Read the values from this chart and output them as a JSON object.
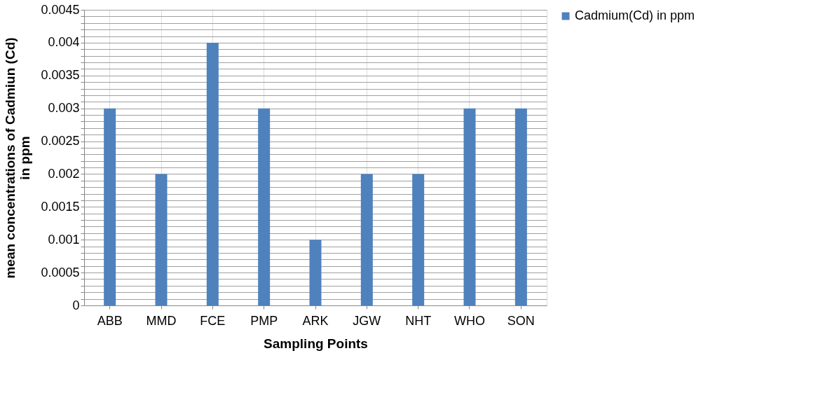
{
  "chart_data": {
    "type": "bar",
    "xlabel": "Sampling Points",
    "ylabel": "mean concentrations of Cadmiun (Cd)\nin ppm",
    "categories": [
      "ABB",
      "MMD",
      "FCE",
      "PMP",
      "ARK",
      "JGW",
      "NHT",
      "WHO",
      "SON"
    ],
    "series": [
      {
        "name": "Cadmium(Cd) in ppm",
        "color": "#4f81bd",
        "values": [
          0.003,
          0.002,
          0.004,
          0.003,
          0.001,
          0.002,
          0.002,
          0.003,
          0.003
        ]
      }
    ],
    "ylim": [
      0,
      0.0045
    ],
    "yticks": [
      0,
      {
        "value": 0.0001,
        "label": null
      },
      {
        "value": 0.0002,
        "label": null
      },
      {
        "value": 0.0003,
        "label": null
      },
      {
        "value": 0.0004,
        "label": null
      },
      0.0005,
      {
        "value": 0.0006,
        "label": null
      },
      {
        "value": 0.0007,
        "label": null
      },
      {
        "value": 0.0008,
        "label": null
      },
      {
        "value": 0.0009,
        "label": null
      },
      0.001,
      {
        "value": 0.0011,
        "label": null
      },
      {
        "value": 0.0012,
        "label": null
      },
      {
        "value": 0.0013,
        "label": null
      },
      {
        "value": 0.0014,
        "label": null
      },
      0.0015,
      {
        "value": 0.0016,
        "label": null
      },
      {
        "value": 0.0017,
        "label": null
      },
      {
        "value": 0.0018,
        "label": null
      },
      {
        "value": 0.0019,
        "label": null
      },
      0.002,
      {
        "value": 0.0021,
        "label": null
      },
      {
        "value": 0.0022,
        "label": null
      },
      {
        "value": 0.0023,
        "label": null
      },
      {
        "value": 0.0024,
        "label": null
      },
      0.0025,
      {
        "value": 0.0026,
        "label": null
      },
      {
        "value": 0.0027,
        "label": null
      },
      {
        "value": 0.0028,
        "label": null
      },
      {
        "value": 0.0029,
        "label": null
      },
      0.003,
      {
        "value": 0.0031,
        "label": null
      },
      {
        "value": 0.0032,
        "label": null
      },
      {
        "value": 0.0033,
        "label": null
      },
      {
        "value": 0.0034,
        "label": null
      },
      0.0035,
      {
        "value": 0.0036,
        "label": null
      },
      {
        "value": 0.0037,
        "label": null
      },
      {
        "value": 0.0038,
        "label": null
      },
      {
        "value": 0.0039,
        "label": null
      },
      0.004,
      {
        "value": 0.0041,
        "label": null
      },
      {
        "value": 0.0042,
        "label": null
      },
      {
        "value": 0.0043,
        "label": null
      },
      {
        "value": 0.0044,
        "label": null
      },
      0.0045
    ],
    "grid": true,
    "legend": "right"
  }
}
